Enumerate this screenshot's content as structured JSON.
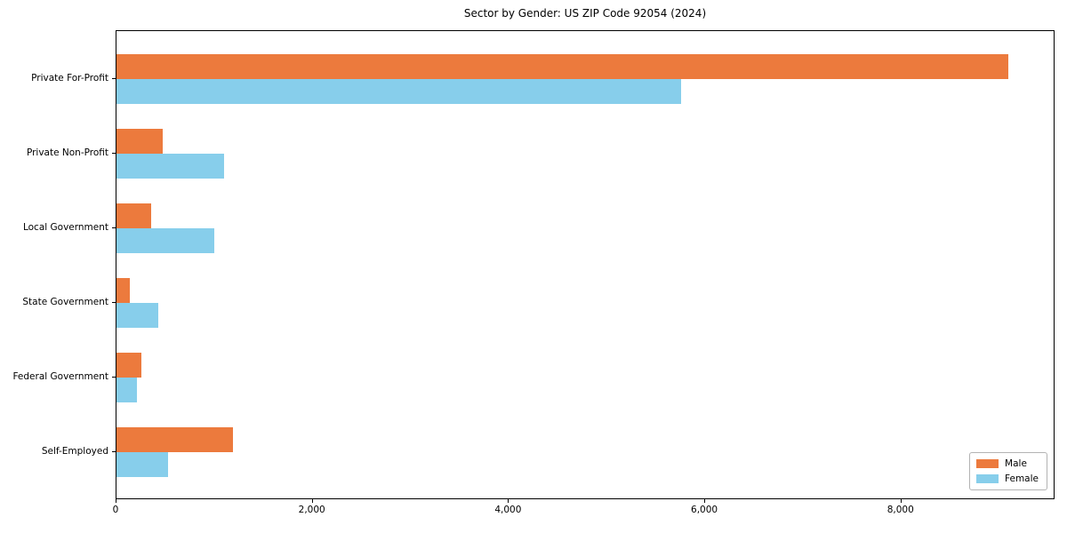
{
  "chart_data": {
    "type": "bar",
    "orientation": "horizontal",
    "title": "Sector by Gender: US ZIP Code 92054 (2024)",
    "categories": [
      "Private For-Profit",
      "Private Non-Profit",
      "Local Government",
      "State Government",
      "Federal Government",
      "Self-Employed"
    ],
    "series": [
      {
        "name": "Male",
        "color": "#EC7A3D",
        "values": [
          9110,
          470,
          350,
          140,
          250,
          1190
        ]
      },
      {
        "name": "Female",
        "color": "#87CEEB",
        "values": [
          5770,
          1100,
          1000,
          430,
          210,
          530
        ]
      }
    ],
    "xlim": [
      0,
      9570
    ],
    "x_ticks": [
      {
        "value": 0,
        "label": "0"
      },
      {
        "value": 2000,
        "label": "2,000"
      },
      {
        "value": 4000,
        "label": "4,000"
      },
      {
        "value": 6000,
        "label": "6,000"
      },
      {
        "value": 8000,
        "label": "8,000"
      }
    ],
    "grid": false,
    "legend": {
      "position": "lower right"
    }
  }
}
